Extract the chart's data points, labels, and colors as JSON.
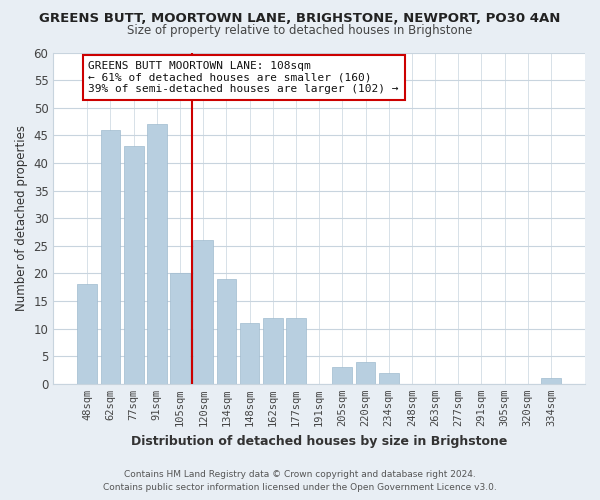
{
  "title": "GREENS BUTT, MOORTOWN LANE, BRIGHSTONE, NEWPORT, PO30 4AN",
  "subtitle": "Size of property relative to detached houses in Brighstone",
  "xlabel": "Distribution of detached houses by size in Brighstone",
  "ylabel": "Number of detached properties",
  "bar_labels": [
    "48sqm",
    "62sqm",
    "77sqm",
    "91sqm",
    "105sqm",
    "120sqm",
    "134sqm",
    "148sqm",
    "162sqm",
    "177sqm",
    "191sqm",
    "205sqm",
    "220sqm",
    "234sqm",
    "248sqm",
    "263sqm",
    "277sqm",
    "291sqm",
    "305sqm",
    "320sqm",
    "334sqm"
  ],
  "bar_values": [
    18,
    46,
    43,
    47,
    20,
    26,
    19,
    11,
    12,
    12,
    0,
    3,
    4,
    2,
    0,
    0,
    0,
    0,
    0,
    0,
    1
  ],
  "bar_color": "#b8cfe0",
  "bar_edge_color": "#a0bbcf",
  "highlight_index": 4,
  "highlight_line_color": "#cc0000",
  "ylim": [
    0,
    60
  ],
  "yticks": [
    0,
    5,
    10,
    15,
    20,
    25,
    30,
    35,
    40,
    45,
    50,
    55,
    60
  ],
  "annotation_title": "GREENS BUTT MOORTOWN LANE: 108sqm",
  "annotation_line1": "← 61% of detached houses are smaller (160)",
  "annotation_line2": "39% of semi-detached houses are larger (102) →",
  "annotation_box_color": "#ffffff",
  "annotation_box_edge": "#cc0000",
  "footer1": "Contains HM Land Registry data © Crown copyright and database right 2024.",
  "footer2": "Contains public sector information licensed under the Open Government Licence v3.0.",
  "bg_color": "#e8eef4",
  "plot_bg_color": "#ffffff",
  "grid_color": "#c8d4de",
  "title_color": "#222222",
  "subtitle_color": "#444444",
  "axis_label_color": "#333333",
  "tick_color": "#444444"
}
